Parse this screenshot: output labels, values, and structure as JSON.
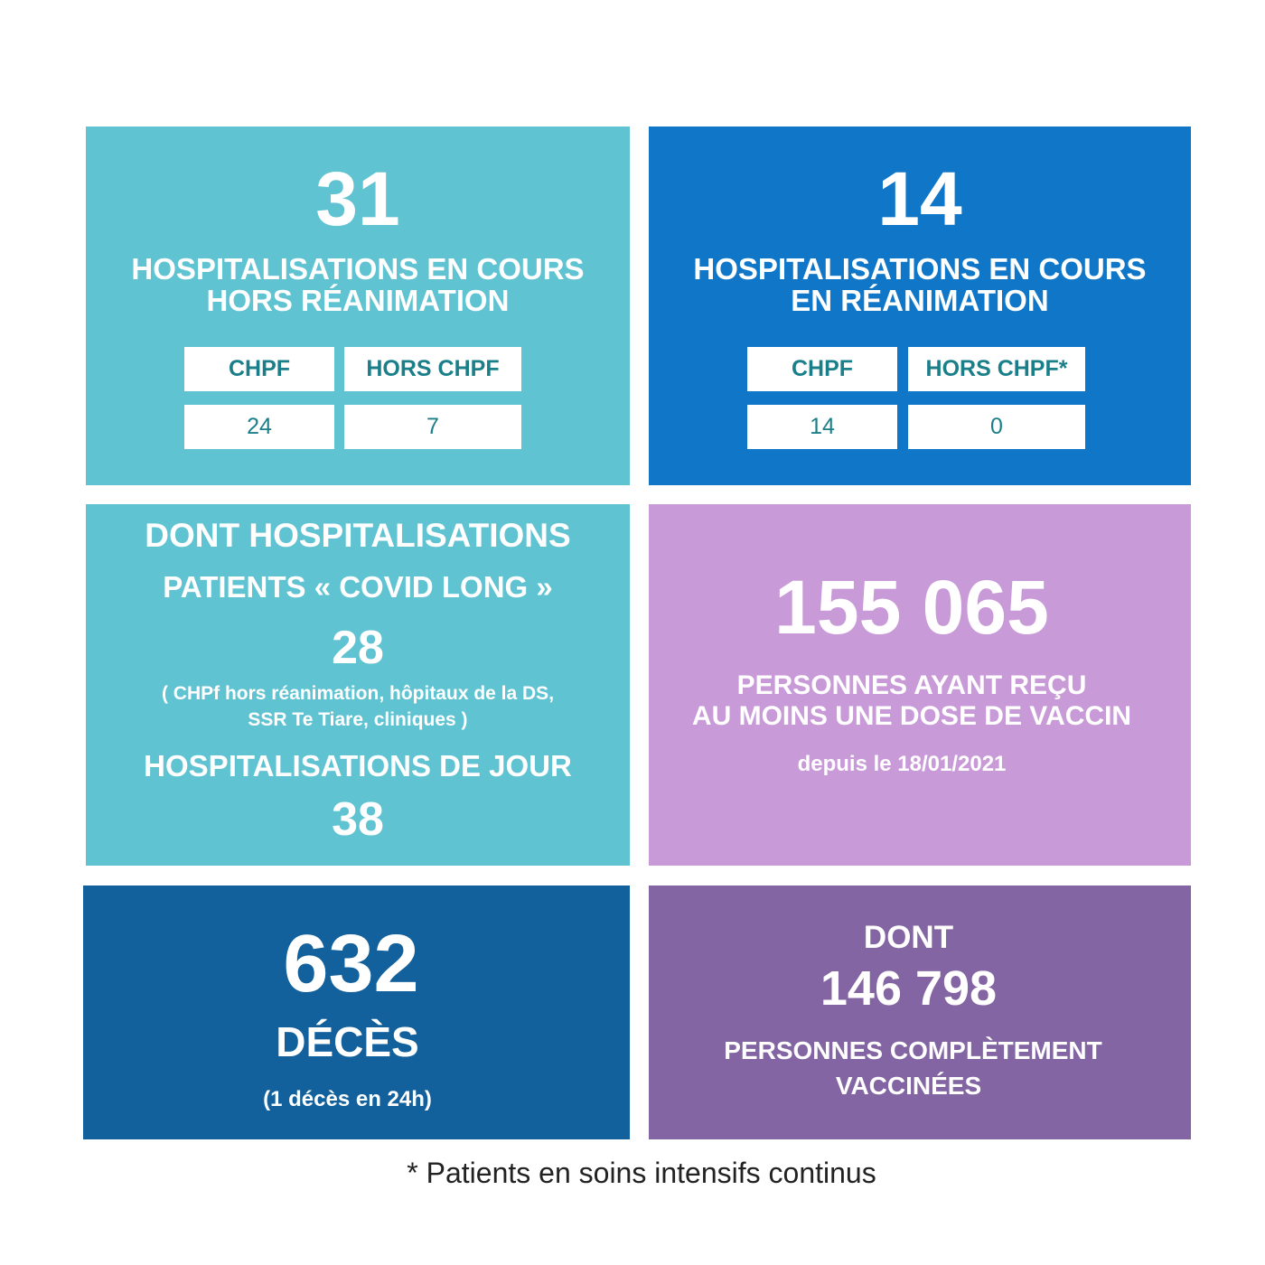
{
  "hosp_hors_rea": {
    "value": "31",
    "title_line1": "HOSPITALISATIONS EN COURS",
    "title_line2": "HORS RÉANIMATION",
    "col1_header": "CHPF",
    "col2_header": "HORS CHPF",
    "col1_value": "24",
    "col2_value": "7"
  },
  "hosp_rea": {
    "value": "14",
    "title_line1": "HOSPITALISATIONS EN COURS",
    "title_line2": "EN RÉANIMATION",
    "col1_header": "CHPF",
    "col2_header": "HORS CHPF*",
    "col1_value": "14",
    "col2_value": "0"
  },
  "covid_long": {
    "line1": "DONT HOSPITALISATIONS",
    "line2": "PATIENTS « COVID LONG »",
    "value": "28",
    "note_line1": "( CHPf hors réanimation, hôpitaux de la DS,",
    "note_line2": "SSR Te Tiare, cliniques )",
    "jour_label": "HOSPITALISATIONS DE JOUR",
    "jour_value": "38"
  },
  "vaccin_une_dose": {
    "value": "155 065",
    "line1": "PERSONNES AYANT REÇU",
    "line2": "AU MOINS UNE DOSE DE VACCIN",
    "since": "depuis le 18/01/2021"
  },
  "deces": {
    "value": "632",
    "label": "DÉCÈS",
    "note": "(1 décès en 24h)"
  },
  "vaccin_complet": {
    "prefix": "DONT",
    "value": "146 798",
    "line1": "PERSONNES COMPLÈTEMENT",
    "line2": "VACCINÉES"
  },
  "footnote": "* Patients en soins intensifs continus",
  "colors": {
    "turquoise": "#60c3d2",
    "blue": "#1076c8",
    "lilac": "#c99ad8",
    "dark_blue": "#12609c",
    "purple": "#8265a2"
  }
}
